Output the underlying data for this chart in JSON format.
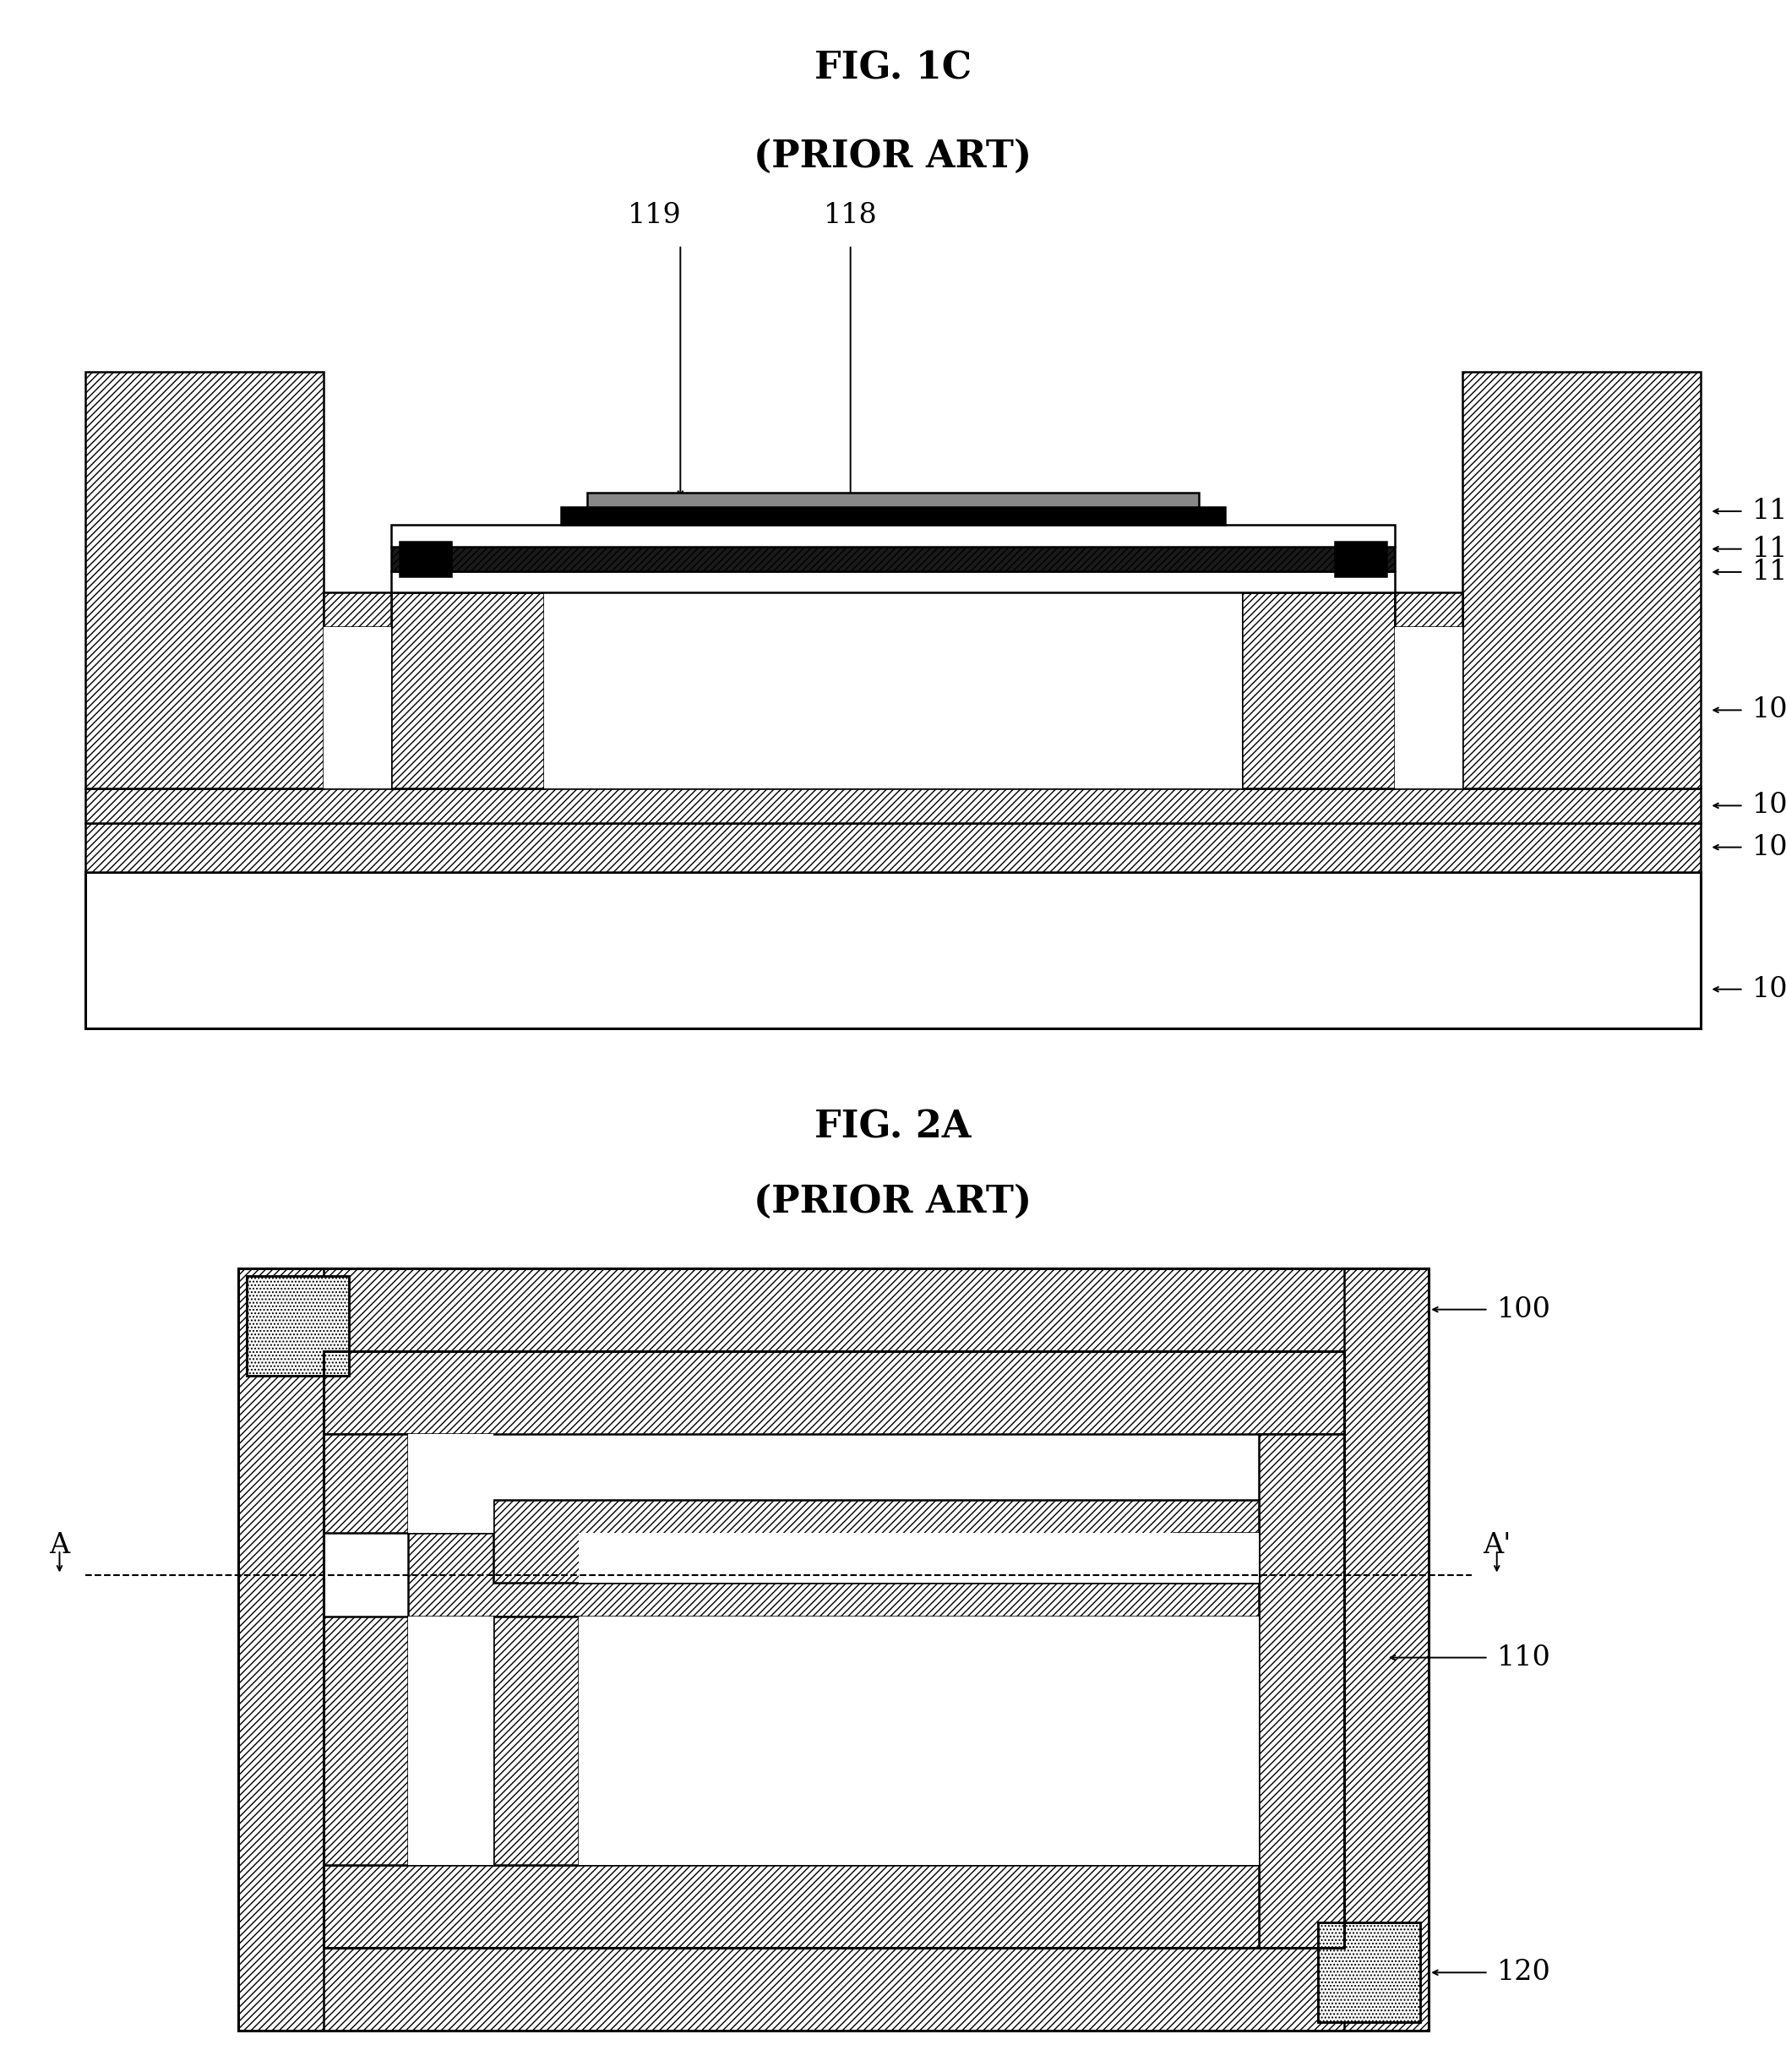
{
  "fig1c_title": "FIG. 1C",
  "fig1c_subtitle": "(PRIOR ART)",
  "fig2a_title": "FIG. 2A",
  "fig2a_subtitle": "(PRIOR ART)",
  "background_color": "#ffffff",
  "line_color": "#000000",
  "title_fontsize": 32,
  "subtitle_fontsize": 32,
  "label_fontsize": 24
}
